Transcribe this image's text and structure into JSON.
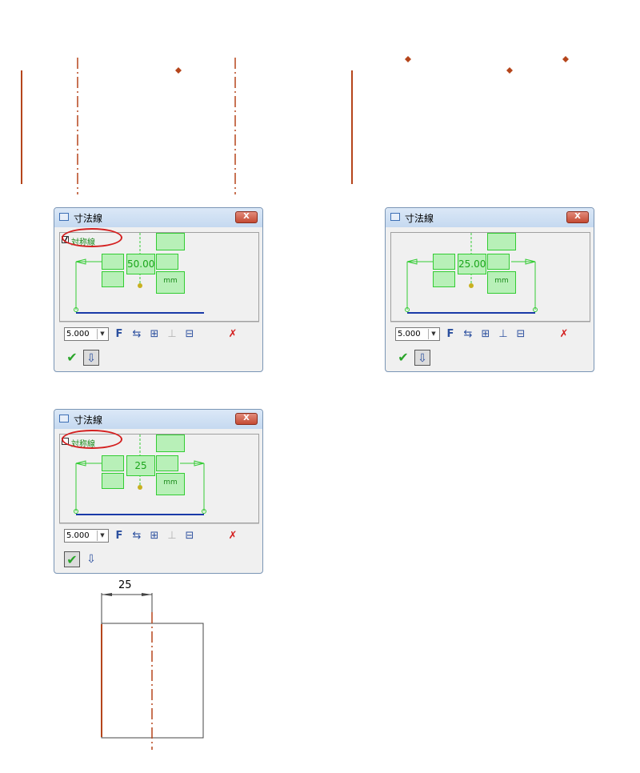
{
  "colors": {
    "centerline": "#b5451b",
    "diamond": "#b5451b",
    "dialog_green": "#33cc33",
    "dim_blue": "#1a3aa8",
    "highlight_red": "#d42020"
  },
  "dialogs": [
    {
      "title": "寸法線",
      "close_label": "X",
      "checkbox_label": "対称線",
      "checkbox_state": "checked",
      "dim_value": "50.00",
      "unit": "mm",
      "size_value": "5.000",
      "ok_pressed": false,
      "exit_pressed": true,
      "toolbar_icons": [
        "format-icon",
        "swap-arrow-icon",
        "dimension-edit-icon",
        "dimension-disabled-icon",
        "dimension-both-icon",
        "delete-icon"
      ]
    },
    {
      "title": "寸法線",
      "close_label": "X",
      "checkbox_label": "",
      "checkbox_state": "none",
      "dim_value": "25.00",
      "unit": "mm",
      "size_value": "5.000",
      "ok_pressed": false,
      "exit_pressed": true,
      "toolbar_icons": [
        "format-icon",
        "swap-arrow-icon",
        "dimension-edit-icon",
        "dimension-active-icon",
        "dimension-both-icon",
        "delete-icon"
      ]
    },
    {
      "title": "寸法線",
      "close_label": "X",
      "checkbox_label": "対称線",
      "checkbox_state": "unchecked",
      "dim_value": "25",
      "unit": "mm",
      "size_value": "5.000",
      "ok_pressed": true,
      "exit_pressed": false,
      "toolbar_icons": [
        "format-icon",
        "swap-arrow-icon",
        "dimension-edit-icon",
        "dimension-disabled-icon",
        "dimension-both-icon",
        "delete-icon"
      ]
    }
  ],
  "drawing": {
    "dimension_label": "25"
  }
}
